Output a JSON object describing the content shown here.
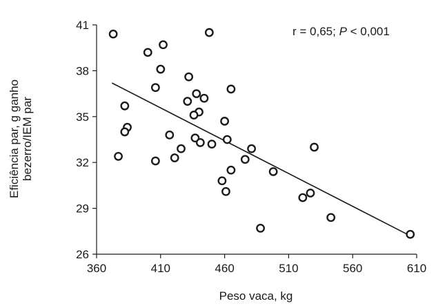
{
  "chart_data": {
    "type": "scatter",
    "xlabel": "Peso vaca, kg",
    "ylabel_lines": [
      "Eficiência par, g ganho",
      "bezerro/IEM par"
    ],
    "annotation": {
      "prefix": "r = 0,65; ",
      "italic": "P",
      "suffix": " < 0,001"
    },
    "xlim": [
      360,
      610
    ],
    "ylim": [
      26,
      41
    ],
    "xticks": [
      360,
      410,
      460,
      510,
      560,
      610
    ],
    "yticks": [
      26,
      29,
      32,
      35,
      38,
      41
    ],
    "grid": false,
    "points": [
      {
        "x": 373,
        "y": 40.4
      },
      {
        "x": 448,
        "y": 40.5
      },
      {
        "x": 412,
        "y": 39.7
      },
      {
        "x": 400,
        "y": 39.2
      },
      {
        "x": 410,
        "y": 38.1
      },
      {
        "x": 432,
        "y": 37.6
      },
      {
        "x": 406,
        "y": 36.9
      },
      {
        "x": 465,
        "y": 36.8
      },
      {
        "x": 438,
        "y": 36.5
      },
      {
        "x": 444,
        "y": 36.2
      },
      {
        "x": 431,
        "y": 36.0
      },
      {
        "x": 382,
        "y": 35.7
      },
      {
        "x": 440,
        "y": 35.3
      },
      {
        "x": 436,
        "y": 35.1
      },
      {
        "x": 460,
        "y": 34.7
      },
      {
        "x": 384,
        "y": 34.3
      },
      {
        "x": 382,
        "y": 34.0
      },
      {
        "x": 417,
        "y": 33.8
      },
      {
        "x": 437,
        "y": 33.6
      },
      {
        "x": 462,
        "y": 33.5
      },
      {
        "x": 441,
        "y": 33.3
      },
      {
        "x": 450,
        "y": 33.2
      },
      {
        "x": 481,
        "y": 32.9
      },
      {
        "x": 426,
        "y": 32.9
      },
      {
        "x": 530,
        "y": 33.0
      },
      {
        "x": 377,
        "y": 32.4
      },
      {
        "x": 421,
        "y": 32.3
      },
      {
        "x": 476,
        "y": 32.2
      },
      {
        "x": 406,
        "y": 32.1
      },
      {
        "x": 465,
        "y": 31.5
      },
      {
        "x": 498,
        "y": 31.4
      },
      {
        "x": 458,
        "y": 30.8
      },
      {
        "x": 461,
        "y": 30.1
      },
      {
        "x": 527,
        "y": 30.0
      },
      {
        "x": 521,
        "y": 29.7
      },
      {
        "x": 543,
        "y": 28.4
      },
      {
        "x": 488,
        "y": 27.7
      },
      {
        "x": 605,
        "y": 27.3
      }
    ],
    "trendline": {
      "x": [
        372,
        605
      ],
      "y": [
        37.2,
        27.2
      ]
    }
  }
}
